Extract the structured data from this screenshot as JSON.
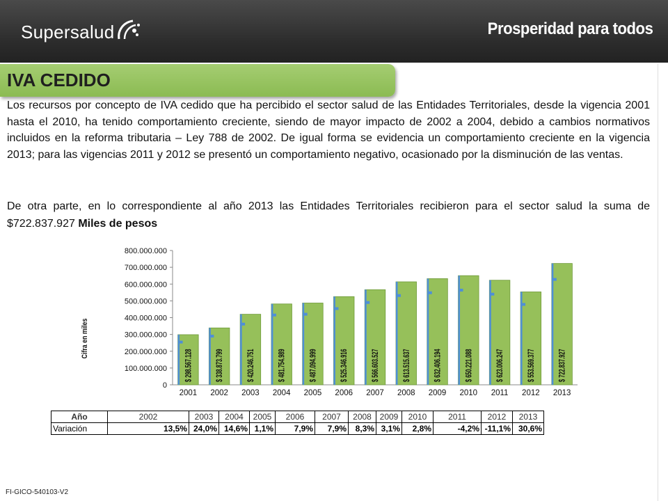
{
  "header": {
    "brand_left": "Supersalud",
    "brand_right": "Prosperidad para todos"
  },
  "section": {
    "title": "IVA CEDIDO",
    "paragraph1": "Los recursos por concepto de IVA cedido que ha percibido el sector salud de las Entidades Territoriales, desde la vigencia 2001 hasta el 2010, ha tenido comportamiento creciente, siendo de mayor impacto de 2002 a 2004, debido a cambios normativos incluidos en la reforma tributaria – Ley 788 de 2002. De igual forma se evidencia un comportamiento creciente en la vigencia 2013; para las vigencias 2011 y 2012 se presentó un comportamiento negativo, ocasionado por la disminución de las ventas.",
    "paragraph2_text": "De otra parte, en lo correspondiente al año 2013 las Entidades Territoriales recibieron para el sector salud la suma de $722.837.927 ",
    "paragraph2_bold": "Miles de pesos"
  },
  "chart_data": {
    "type": "bar",
    "ylabel": "Cifra en miles",
    "ylim": [
      0,
      800000000
    ],
    "yticks": [
      "0",
      "100.000.000",
      "200.000.000",
      "300.000.000",
      "400.000.000",
      "500.000.000",
      "600.000.000",
      "700.000.000",
      "800.000.000"
    ],
    "categories": [
      "2001",
      "2002",
      "2003",
      "2004",
      "2005",
      "2006",
      "2007",
      "2008",
      "2009",
      "2010",
      "2011",
      "2012",
      "2013"
    ],
    "values": [
      298567128,
      338873799,
      420246751,
      481754989,
      487094999,
      525346916,
      566603527,
      613515637,
      632406194,
      650221088,
      623006247,
      553569377,
      722837927
    ],
    "labels": [
      "$ 298.567.128",
      "$ 338.873.799",
      "$ 420.246.751",
      "$ 481.754.989",
      "$ 487.094.999",
      "$ 525.346.916",
      "$ 566.603.527",
      "$ 613.515.637",
      "$ 632.406.194",
      "$ 650.221.088",
      "$ 623.006.247",
      "$ 553.569.377",
      "$ 722.837.927"
    ],
    "colors": {
      "bar": "#96c05a",
      "bar_edge": "#6f9a3a",
      "marker": "#4f8fd6"
    }
  },
  "table": {
    "header_label": "Año",
    "years": [
      "2002",
      "2003",
      "2004",
      "2005",
      "2006",
      "2007",
      "2008",
      "2009",
      "2010",
      "2011",
      "2012",
      "2013"
    ],
    "row_label": "Variación",
    "values": [
      "13,5%",
      "24,0%",
      "14,6%",
      "1,1%",
      "7,9%",
      "7,9%",
      "8,3%",
      "3,1%",
      "2,8%",
      "-4,2%",
      "-11,1%",
      "30,6%"
    ]
  },
  "footer": {
    "code": "FI-GICO-540103-V2"
  }
}
